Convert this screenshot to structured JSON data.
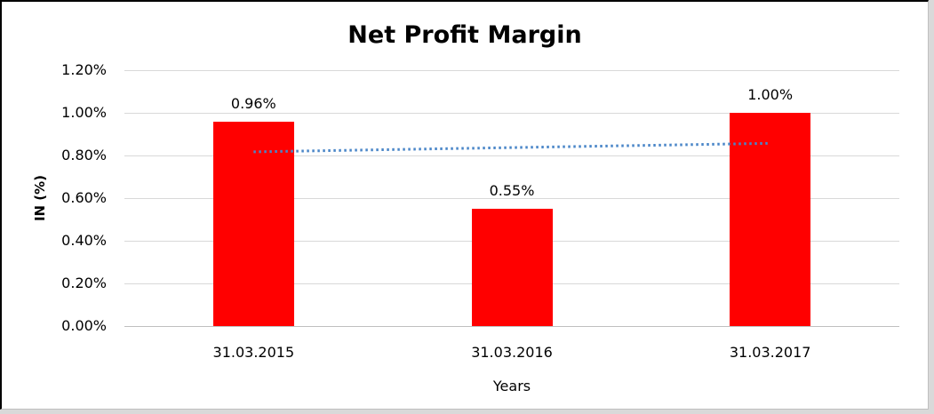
{
  "frame": {
    "background": "#FFFFFF",
    "outer_background": "#D9D9D9",
    "border_color": "#000000"
  },
  "chart_data": {
    "type": "bar",
    "title": "Net Profit Margin",
    "categories": [
      "31.03.2015",
      "31.03.2016",
      "31.03.2017"
    ],
    "values": [
      0.96,
      0.55,
      1.0
    ],
    "data_labels": [
      "0.96%",
      "0.55%",
      "1.00%"
    ],
    "xlabel": "Years",
    "ylabel": "IN (%)",
    "ylim": [
      0,
      1.2
    ],
    "ytick_values": [
      0,
      0.2,
      0.4,
      0.6,
      0.8,
      1.0,
      1.2
    ],
    "ytick_labels": [
      "0.00%",
      "0.20%",
      "0.40%",
      "0.60%",
      "0.80%",
      "1.00%",
      "1.20%"
    ],
    "grid": true,
    "legend": "none",
    "bar_color": "#FF0000",
    "gridline_color": "#D9D9D9",
    "axis_line_color": "#BFBFBF",
    "text_color": "#000000",
    "trendline": {
      "type": "linear",
      "style": "dotted",
      "color": "#4A86C8",
      "start_value": 0.817,
      "end_value": 0.857
    }
  }
}
